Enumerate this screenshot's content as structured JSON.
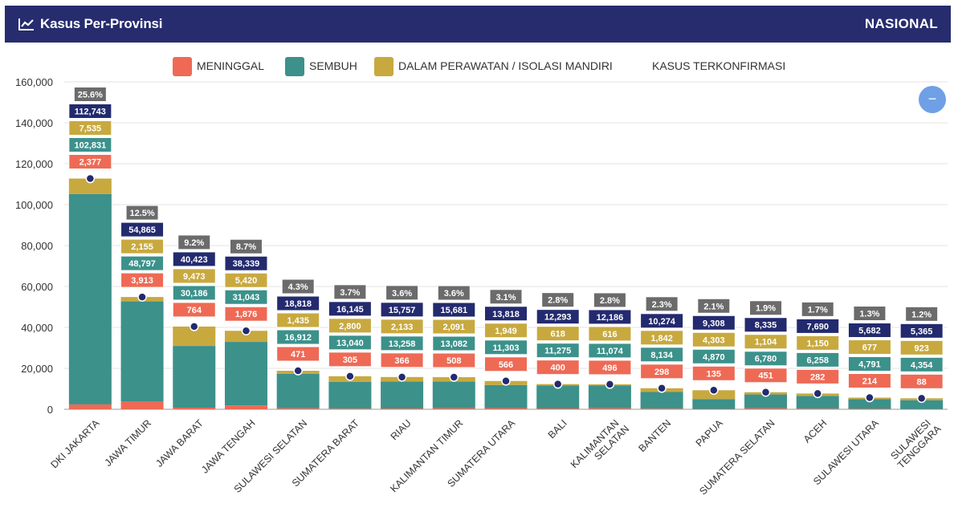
{
  "header": {
    "title": "Kasus Per-Provinsi",
    "scope": "NASIONAL",
    "icon": "line-chart-icon"
  },
  "zoom_button": {
    "icon": "minus-icon",
    "label": "−"
  },
  "colors": {
    "meninggal": "#ee6a55",
    "sembuh": "#3c918b",
    "perawatan": "#c8a93f",
    "terkonfirmasi": "#232a6e",
    "persen": "#6b6b6b",
    "header": "#262c6e"
  },
  "chart_data": {
    "type": "bar",
    "stacked": true,
    "categories": [
      "DKI JAKARTA",
      "JAWA TIMUR",
      "JAWA BARAT",
      "JAWA TENGAH",
      "SULAWESI SELATAN",
      "SUMATERA BARAT",
      "RIAU",
      "KALIMANTAN TIMUR",
      "SUMATERA UTARA",
      "BALI",
      "KALIMANTAN SELATAN",
      "BANTEN",
      "PAPUA",
      "SUMATERA SELATAN",
      "ACEH",
      "SULAWESI UTARA",
      "SULAWESI TENGGARA"
    ],
    "series": [
      {
        "name": "MENINGGAL",
        "values": [
          "2,377",
          "3,913",
          "764",
          "1,876",
          "471",
          "305",
          "366",
          "508",
          "566",
          "400",
          "496",
          "298",
          "135",
          "451",
          "282",
          "214",
          "88"
        ]
      },
      {
        "name": "SEMBUH",
        "values": [
          "102,831",
          "48,797",
          "30,186",
          "31,043",
          "16,912",
          "13,040",
          "13,258",
          "13,082",
          "11,303",
          "11,275",
          "11,074",
          "8,134",
          "4,870",
          "6,780",
          "6,258",
          "4,791",
          "4,354"
        ]
      },
      {
        "name": "DALAM PERAWATAN / ISOLASI MANDIRI",
        "values": [
          "7,535",
          "2,155",
          "9,473",
          "5,420",
          "1,435",
          "2,800",
          "2,133",
          "2,091",
          "1,949",
          "618",
          "616",
          "1,842",
          "4,303",
          "1,104",
          "1,150",
          "677",
          "923"
        ]
      },
      {
        "name": "KASUS TERKONFIRMASI",
        "values": [
          "112,743",
          "54,865",
          "40,423",
          "38,339",
          "18,818",
          "16,145",
          "15,757",
          "15,681",
          "13,818",
          "12,293",
          "12,186",
          "10,274",
          "9,308",
          "8,335",
          "7,690",
          "5,682",
          "5,365"
        ]
      }
    ],
    "percentages": [
      "25.6%",
      "12.5%",
      "9.2%",
      "8.7%",
      "4.3%",
      "3.7%",
      "3.6%",
      "3.6%",
      "3.1%",
      "2.8%",
      "2.8%",
      "2.3%",
      "2.1%",
      "1.9%",
      "1.7%",
      "1.3%",
      "1.2%"
    ],
    "ylim": [
      0,
      160000
    ],
    "yticks": [
      "0",
      "20,000",
      "40,000",
      "60,000",
      "80,000",
      "100,000",
      "120,000",
      "140,000",
      "160,000"
    ],
    "grid": true,
    "legend_position": "top-center"
  }
}
